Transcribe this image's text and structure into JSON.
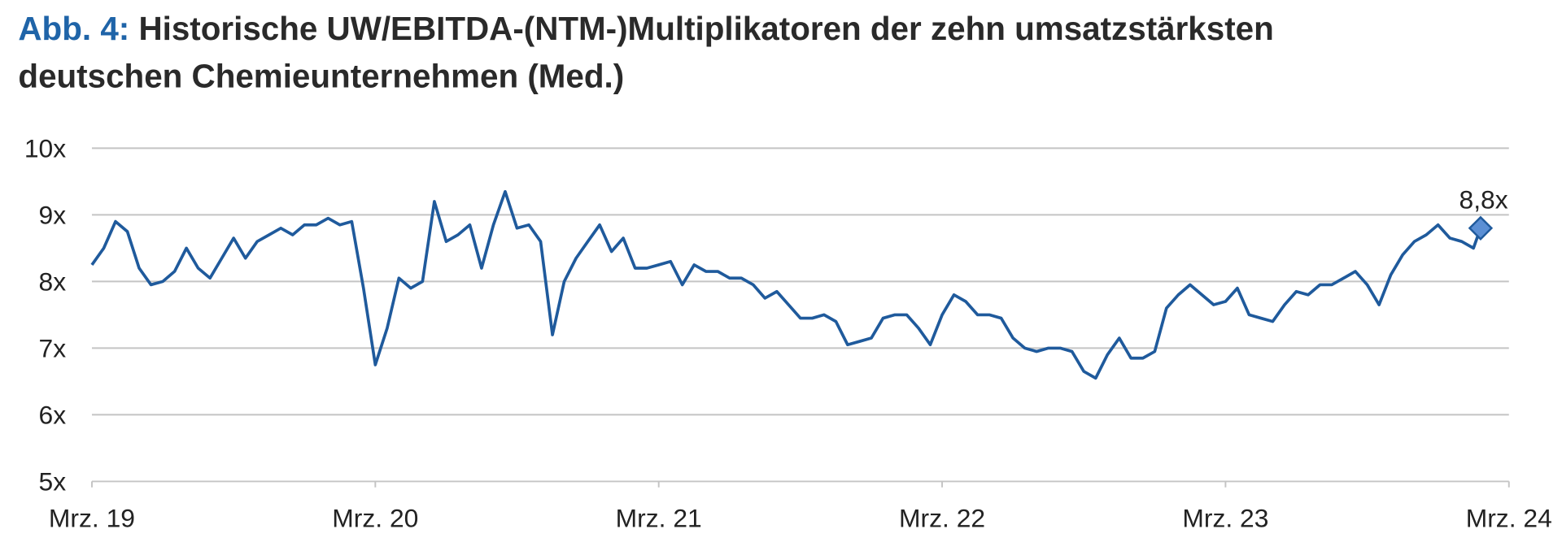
{
  "chart_data": {
    "type": "line",
    "title_prefix": "Abb. 4:",
    "title_lines": [
      "Historische UW/EBITDA-(NTM-)Multiplikatoren der zehn umsatzstärksten",
      "deutschen Chemieunternehmen (Med.)"
    ],
    "x": [
      0,
      0.5,
      1,
      1.5,
      2,
      2.5,
      3,
      3.5,
      4,
      4.5,
      5,
      5.5,
      6,
      6.5,
      7,
      7.5,
      8,
      8.5,
      9,
      9.5,
      10,
      10.5,
      11,
      11.5,
      12,
      12.5,
      13,
      13.5,
      14,
      14.5,
      15,
      15.5,
      16,
      16.5,
      17,
      17.5,
      18,
      18.5,
      19,
      19.5,
      20,
      20.5,
      21,
      21.5,
      22,
      22.5,
      23,
      23.5,
      24,
      24.5,
      25,
      25.5,
      26,
      26.5,
      27,
      27.5,
      28,
      28.5,
      29,
      29.5,
      30,
      30.5,
      31,
      31.5,
      32,
      32.5,
      33,
      33.5,
      34,
      34.5,
      35,
      35.5,
      36,
      36.5,
      37,
      37.5,
      38,
      38.5,
      39,
      39.5,
      40,
      40.5,
      41,
      41.5,
      42,
      42.5,
      43,
      43.5,
      44,
      44.5,
      45,
      45.5,
      46,
      46.5,
      47,
      47.5,
      48,
      48.5,
      49,
      49.5,
      50,
      50.5,
      51,
      51.5,
      52,
      52.5,
      53,
      53.5,
      54,
      54.5,
      55,
      55.5,
      56,
      56.5,
      57,
      57.5,
      58,
      58.5,
      58.8
    ],
    "series": [
      {
        "name": "UW/EBITDA (NTM, Median)",
        "color": "#1f5a9c",
        "values": [
          8.25,
          8.5,
          8.9,
          8.75,
          8.2,
          7.95,
          8.0,
          8.15,
          8.5,
          8.2,
          8.05,
          8.35,
          8.65,
          8.35,
          8.6,
          8.7,
          8.8,
          8.7,
          8.85,
          8.85,
          8.95,
          8.85,
          8.9,
          7.9,
          6.75,
          7.3,
          8.05,
          7.9,
          8.0,
          9.2,
          8.6,
          8.7,
          8.85,
          8.2,
          8.85,
          9.35,
          8.8,
          8.85,
          8.6,
          7.2,
          8.0,
          8.35,
          8.6,
          8.85,
          8.45,
          8.65,
          8.2,
          8.2,
          8.25,
          8.3,
          7.95,
          8.25,
          8.15,
          8.15,
          8.05,
          8.05,
          7.95,
          7.75,
          7.85,
          7.65,
          7.45,
          7.45,
          7.5,
          7.4,
          7.05,
          7.1,
          7.15,
          7.45,
          7.5,
          7.5,
          7.3,
          7.05,
          7.5,
          7.8,
          7.7,
          7.5,
          7.5,
          7.45,
          7.15,
          7.0,
          6.95,
          7.0,
          7.0,
          6.95,
          6.65,
          6.55,
          6.9,
          7.15,
          6.85,
          6.85,
          6.95,
          7.6,
          7.8,
          7.95,
          7.8,
          7.65,
          7.7,
          7.9,
          7.5,
          7.45,
          7.4,
          7.65,
          7.85,
          7.8,
          7.95,
          7.95,
          8.05,
          8.15,
          7.95,
          7.65,
          8.1,
          8.4,
          8.6,
          8.7,
          8.85,
          8.65,
          8.6,
          8.5,
          8.8
        ]
      }
    ],
    "end_label": {
      "value": 8.8,
      "label": "8,8x"
    },
    "xlim": [
      0,
      60
    ],
    "xticks": [
      {
        "value": 0,
        "label": "Mrz. 19"
      },
      {
        "value": 12,
        "label": "Mrz. 20"
      },
      {
        "value": 24,
        "label": "Mrz. 21"
      },
      {
        "value": 36,
        "label": "Mrz. 22"
      },
      {
        "value": 48,
        "label": "Mrz. 23"
      },
      {
        "value": 60,
        "label": "Mrz. 24"
      }
    ],
    "ylim": [
      5,
      10
    ],
    "yticks": [
      {
        "value": 5,
        "label": "5x"
      },
      {
        "value": 6,
        "label": "6x"
      },
      {
        "value": 7,
        "label": "7x"
      },
      {
        "value": 8,
        "label": "8x"
      },
      {
        "value": 9,
        "label": "9x"
      },
      {
        "value": 10,
        "label": "10x"
      }
    ],
    "grid": true
  }
}
